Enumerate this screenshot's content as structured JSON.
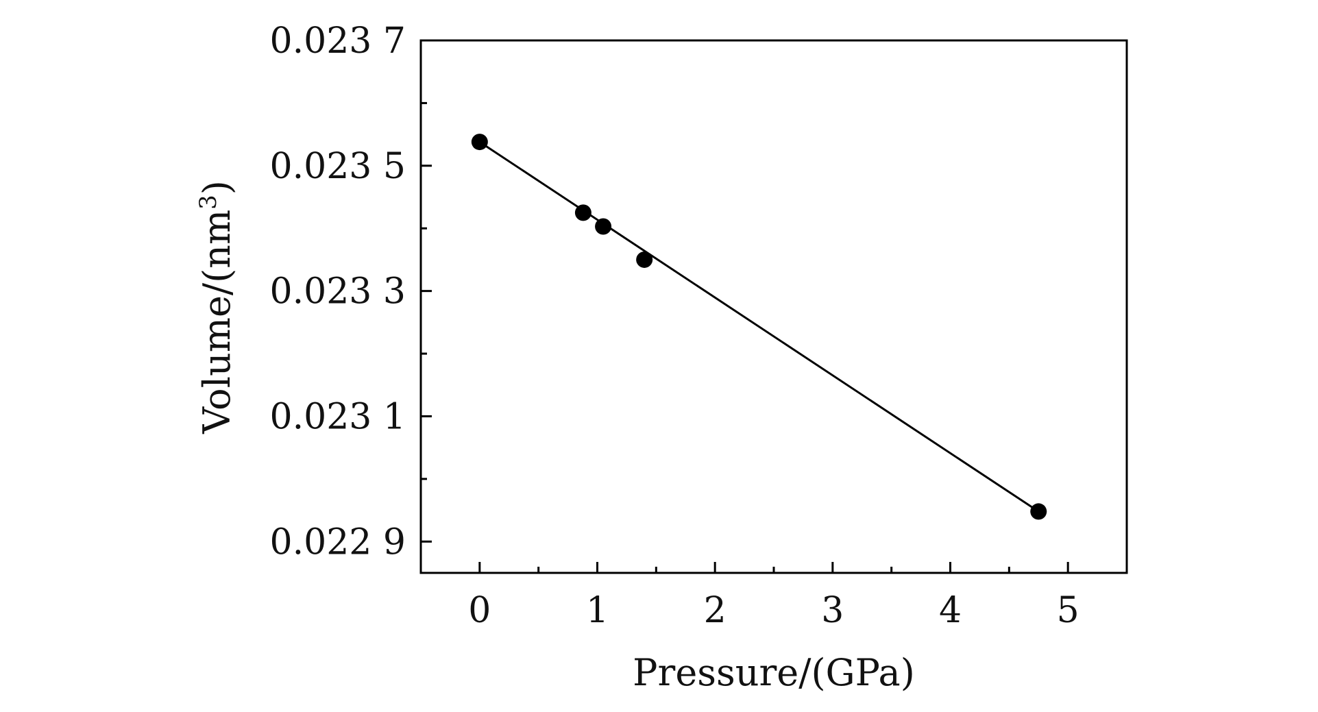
{
  "chart_data": {
    "type": "scatter",
    "xlabel": "Pressure/(GPa)",
    "ylabel_main": "Volume/(nm",
    "ylabel_sup": "3",
    "ylabel_close": ")",
    "xlim": [
      -0.5,
      5.5
    ],
    "ylim": [
      0.02285,
      0.0237
    ],
    "x_ticks": [
      0,
      1,
      2,
      3,
      4,
      5
    ],
    "x_tick_labels": [
      "0",
      "1",
      "2",
      "3",
      "4",
      "5"
    ],
    "x_minor_ticks": [
      0.5,
      1.5,
      2.5,
      3.5,
      4.5
    ],
    "y_ticks": [
      0.0229,
      0.0231,
      0.0233,
      0.0235,
      0.0237
    ],
    "y_tick_labels": [
      "0.022 9",
      "0.023 1",
      "0.023 3",
      "0.023 5",
      "0.023 7"
    ],
    "y_minor_ticks": [
      0.023,
      0.0232,
      0.0234,
      0.0236
    ],
    "points": [
      {
        "x": 0.0,
        "y": 0.023538
      },
      {
        "x": 0.88,
        "y": 0.023425
      },
      {
        "x": 1.05,
        "y": 0.023403
      },
      {
        "x": 1.4,
        "y": 0.02335
      },
      {
        "x": 4.75,
        "y": 0.022948
      }
    ],
    "fit_line": {
      "x": [
        0.0,
        4.75
      ],
      "y": [
        0.023538,
        0.022948
      ]
    },
    "grid": false,
    "legend": "none",
    "marker_color": "#000000",
    "line_color": "#000000"
  }
}
